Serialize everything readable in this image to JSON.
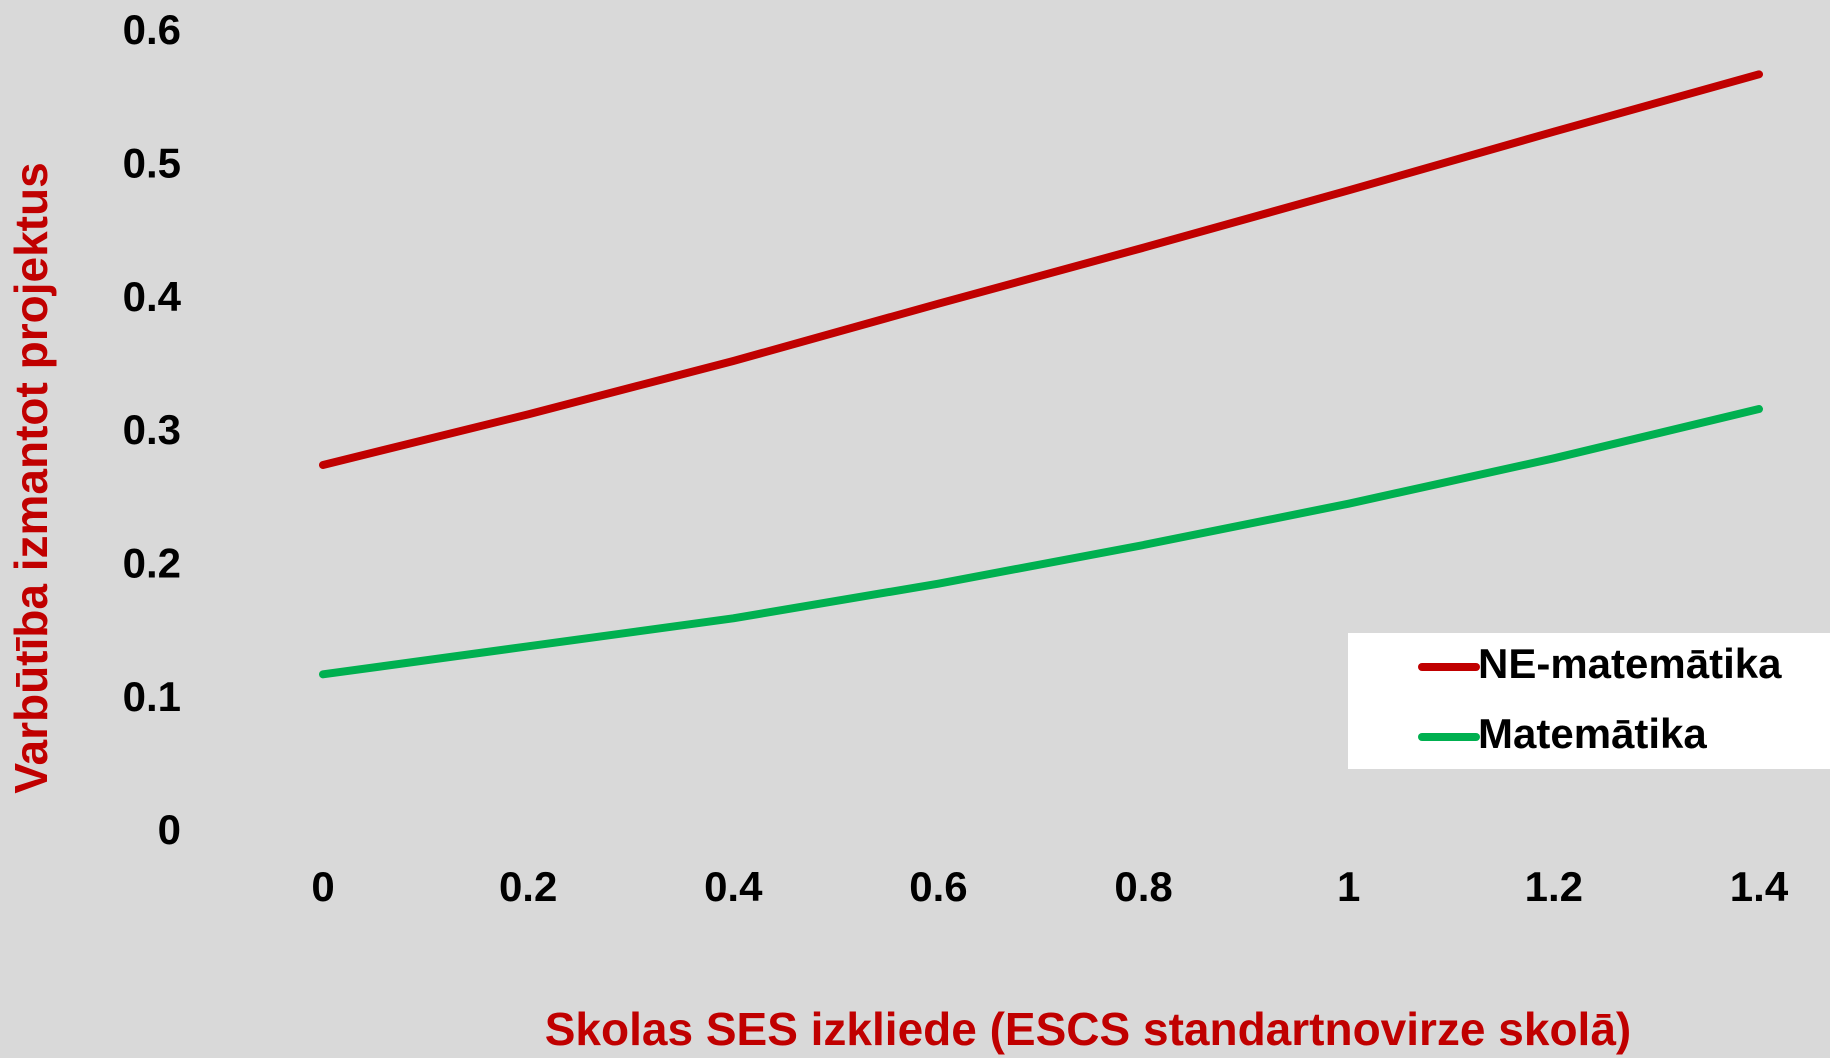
{
  "chart_data": {
    "type": "line",
    "xlabel": "Skolas SES izkliede (ESCS standartnovirze skolā)",
    "ylabel": "Varbūtība izmantot projektus",
    "x": [
      0,
      0.2,
      0.4,
      0.6,
      0.8,
      1,
      1.2,
      1.4
    ],
    "series": [
      {
        "name": "NE-matemātika",
        "color": "#c00000",
        "values": [
          0.276,
          0.314,
          0.354,
          0.397,
          0.439,
          0.482,
          0.526,
          0.569
        ]
      },
      {
        "name": "Matemātika",
        "color": "#00b050",
        "values": [
          0.119,
          0.14,
          0.161,
          0.187,
          0.216,
          0.247,
          0.281,
          0.318
        ]
      }
    ],
    "xlim": [
      0,
      1.4
    ],
    "xticks": [
      0,
      0.2,
      0.4,
      0.6,
      0.8,
      1,
      1.2,
      1.4
    ],
    "ylim": [
      0,
      0.6
    ],
    "yticks": [
      0,
      0.1,
      0.2,
      0.3,
      0.4,
      0.5,
      0.6
    ],
    "grid": false,
    "legend": "right"
  }
}
